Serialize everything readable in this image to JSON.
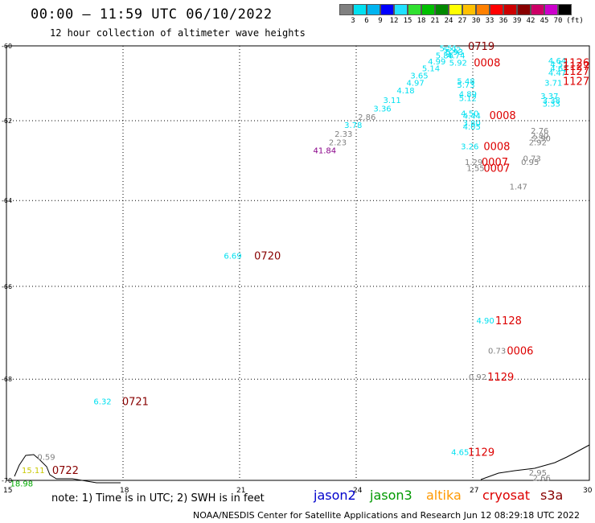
{
  "header": {
    "title": "00:00 – 11:59 UTC 06/10/2022",
    "subtitle": "12 hour collection of altimeter wave heights"
  },
  "scale": {
    "colors": [
      "#808080",
      "#00e0f0",
      "#00b4f0",
      "#0000ff",
      "#00c0ff",
      "#30e030",
      "#00c000",
      "#008800",
      "#ffff00",
      "#ffc000",
      "#ff8000",
      "#ff0000",
      "#cc0000",
      "#880000",
      "#aa0000",
      "#cc00cc",
      "#ee88ee",
      "#000000"
    ],
    "labels": [
      "3",
      "6",
      "9",
      "12",
      "15",
      "18",
      "21",
      "24",
      "27",
      "30",
      "33",
      "36",
      "39",
      "42",
      "45",
      "70",
      "(ft)"
    ],
    "colors_used": [
      "#808080",
      "#00e0f0",
      "#00b4f0",
      "#0000ff",
      "#20e0ff",
      "#30e030",
      "#00c000",
      "#008800",
      "#ffff00",
      "#ffc000",
      "#ff8000",
      "#ff0000",
      "#cc0000",
      "#880000",
      "#cc0066",
      "#cc00cc",
      "#000000"
    ]
  },
  "axes": {
    "lat_labels": [
      "-60",
      "-62",
      "-64",
      "-66",
      "-68",
      "-70"
    ],
    "lon_labels": [
      "15",
      "18",
      "21",
      "24",
      "27",
      "30"
    ]
  },
  "wave_heights": [
    {
      "text": "5.51",
      "lon": 26.35,
      "lat": -60.05,
      "c": "#00e0f0"
    },
    {
      "text": "5.92",
      "lon": 26.45,
      "lat": -60.1,
      "c": "#00e0f0"
    },
    {
      "text": "5.93",
      "lon": 26.5,
      "lat": -60.15,
      "c": "#00e0f0"
    },
    {
      "text": "5.86",
      "lon": 26.25,
      "lat": -60.25,
      "c": "#00e0f0"
    },
    {
      "text": "4.74",
      "lon": 26.55,
      "lat": -60.25,
      "c": "#00e0f0"
    },
    {
      "text": "4.99",
      "lon": 26.05,
      "lat": -60.42,
      "c": "#00e0f0"
    },
    {
      "text": "5.92",
      "lon": 26.6,
      "lat": -60.45,
      "c": "#00e0f0"
    },
    {
      "text": "5.14",
      "lon": 25.9,
      "lat": -60.6,
      "c": "#00e0f0"
    },
    {
      "text": "3.65",
      "lon": 25.6,
      "lat": -60.8,
      "c": "#00e0f0"
    },
    {
      "text": "4.97",
      "lon": 25.5,
      "lat": -61.0,
      "c": "#00e0f0"
    },
    {
      "text": "5.48",
      "lon": 26.8,
      "lat": -60.95,
      "c": "#00e0f0"
    },
    {
      "text": "5.73",
      "lon": 26.8,
      "lat": -61.05,
      "c": "#00e0f0"
    },
    {
      "text": "4.18",
      "lon": 25.25,
      "lat": -61.2,
      "c": "#00e0f0"
    },
    {
      "text": "4.89",
      "lon": 26.85,
      "lat": -61.3,
      "c": "#00e0f0"
    },
    {
      "text": "5.12",
      "lon": 26.85,
      "lat": -61.4,
      "c": "#00e0f0"
    },
    {
      "text": "3.11",
      "lon": 24.9,
      "lat": -61.45,
      "c": "#00e0f0"
    },
    {
      "text": "3.36",
      "lon": 24.65,
      "lat": -61.68,
      "c": "#00e0f0"
    },
    {
      "text": "4.50",
      "lon": 26.9,
      "lat": -61.8,
      "c": "#00e0f0"
    },
    {
      "text": "4.44",
      "lon": 26.95,
      "lat": -61.87,
      "c": "#00e0f0"
    },
    {
      "text": "2.86",
      "lon": 24.25,
      "lat": -61.9,
      "c": "#808080"
    },
    {
      "text": "3.80",
      "lon": 26.95,
      "lat": -62.05,
      "c": "#00e0f0"
    },
    {
      "text": "3.78",
      "lon": 23.9,
      "lat": -62.1,
      "c": "#00e0f0"
    },
    {
      "text": "4.05",
      "lon": 26.95,
      "lat": -62.15,
      "c": "#00e0f0"
    },
    {
      "text": "2.33",
      "lon": 23.65,
      "lat": -62.33,
      "c": "#808080"
    },
    {
      "text": "2.23",
      "lon": 23.5,
      "lat": -62.55,
      "c": "#808080"
    },
    {
      "text": "3.26",
      "lon": 26.9,
      "lat": -62.65,
      "c": "#00e0f0"
    },
    {
      "text": "41.84",
      "lon": 23.1,
      "lat": -62.75,
      "c": "#880088"
    },
    {
      "text": "1.29",
      "lon": 27.0,
      "lat": -63.05,
      "c": "#808080"
    },
    {
      "text": "1.55",
      "lon": 27.05,
      "lat": -63.2,
      "c": "#808080"
    },
    {
      "text": "0.73",
      "lon": 28.5,
      "lat": -62.95,
      "c": "#808080"
    },
    {
      "text": "0.95",
      "lon": 28.45,
      "lat": -63.05,
      "c": "#808080"
    },
    {
      "text": "1.47",
      "lon": 28.15,
      "lat": -63.65,
      "c": "#808080"
    },
    {
      "text": "4.64",
      "lon": 29.15,
      "lat": -60.4,
      "c": "#00e0f0"
    },
    {
      "text": "4.57",
      "lon": 29.2,
      "lat": -60.5,
      "c": "#00e0f0"
    },
    {
      "text": "4.62",
      "lon": 29.2,
      "lat": -60.6,
      "c": "#00e0f0"
    },
    {
      "text": "4.47",
      "lon": 29.15,
      "lat": -60.72,
      "c": "#00e0f0"
    },
    {
      "text": "3.71",
      "lon": 29.05,
      "lat": -61.0,
      "c": "#00e0f0"
    },
    {
      "text": "3.37",
      "lon": 28.95,
      "lat": -61.35,
      "c": "#00e0f0"
    },
    {
      "text": "3.38",
      "lon": 29.0,
      "lat": -61.45,
      "c": "#00e0f0"
    },
    {
      "text": "3.33",
      "lon": 29.0,
      "lat": -61.55,
      "c": "#00e0f0"
    },
    {
      "text": "2.76",
      "lon": 28.7,
      "lat": -62.25,
      "c": "#808080"
    },
    {
      "text": "2.80",
      "lon": 28.7,
      "lat": -62.37,
      "c": "#808080"
    },
    {
      "text": "2.90",
      "lon": 28.75,
      "lat": -62.45,
      "c": "#808080"
    },
    {
      "text": "2.92",
      "lon": 28.65,
      "lat": -62.55,
      "c": "#808080"
    },
    {
      "text": "6.69",
      "lon": 20.8,
      "lat": -65.3,
      "c": "#00e0f0"
    },
    {
      "text": "4.90",
      "lon": 27.3,
      "lat": -66.75,
      "c": "#00e0f0"
    },
    {
      "text": "0.73",
      "lon": 27.6,
      "lat": -67.4,
      "c": "#808080"
    },
    {
      "text": "0.92",
      "lon": 27.1,
      "lat": -67.95,
      "c": "#808080"
    },
    {
      "text": "6.32",
      "lon": 17.45,
      "lat": -68.45,
      "c": "#00e0f0"
    },
    {
      "text": "4.65",
      "lon": 26.65,
      "lat": -69.45,
      "c": "#00e0f0"
    },
    {
      "text": "0.59",
      "lon": 16.0,
      "lat": -69.55,
      "c": "#808080"
    },
    {
      "text": "15.11",
      "lon": 15.6,
      "lat": -69.8,
      "c": "#c8c800"
    },
    {
      "text": "18.98",
      "lon": 15.3,
      "lat": -70.05,
      "c": "#00aa00"
    },
    {
      "text": "2.95",
      "lon": 28.65,
      "lat": -69.85,
      "c": "#808080"
    },
    {
      "text": "2.66",
      "lon": 28.75,
      "lat": -69.95,
      "c": "#808080"
    }
  ],
  "time_labels": [
    {
      "text": "0719",
      "lon": 27.0,
      "lat": -60.0,
      "c": "#880000"
    },
    {
      "text": "0008",
      "lon": 27.15,
      "lat": -60.45,
      "c": "#dd0000"
    },
    {
      "text": "0008",
      "lon": 27.55,
      "lat": -61.85,
      "c": "#dd0000"
    },
    {
      "text": "0008",
      "lon": 27.4,
      "lat": -62.65,
      "c": "#dd0000"
    },
    {
      "text": "0007",
      "lon": 27.35,
      "lat": -63.05,
      "c": "#dd0000"
    },
    {
      "text": "0007",
      "lon": 27.4,
      "lat": -63.2,
      "c": "#dd0000"
    },
    {
      "text": "1126",
      "lon": 29.95,
      "lat": -60.45,
      "c": "#dd0000"
    },
    {
      "text": "1127",
      "lon": 29.95,
      "lat": -60.55,
      "c": "#dd0000"
    },
    {
      "text": "1127",
      "lon": 29.95,
      "lat": -60.68,
      "c": "#dd0000"
    },
    {
      "text": "1127",
      "lon": 29.75,
      "lat": -60.95,
      "c": "#dd0000"
    },
    {
      "text": "0720",
      "lon": 21.5,
      "lat": -65.3,
      "c": "#880000"
    },
    {
      "text": "1128",
      "lon": 27.7,
      "lat": -66.75,
      "c": "#dd0000"
    },
    {
      "text": "0006",
      "lon": 28.0,
      "lat": -67.4,
      "c": "#dd0000"
    },
    {
      "text": "1129",
      "lon": 27.5,
      "lat": -67.95,
      "c": "#dd0000"
    },
    {
      "text": "0721",
      "lon": 18.1,
      "lat": -68.45,
      "c": "#880000"
    },
    {
      "text": "1129",
      "lon": 27.0,
      "lat": -69.45,
      "c": "#dd0000"
    },
    {
      "text": "0722",
      "lon": 16.3,
      "lat": -69.8,
      "c": "#880000"
    }
  ],
  "footer": {
    "note": "note: 1) Time is in UTC; 2) SWH is in feet",
    "satellites": [
      {
        "name": "jason2",
        "color": "#0000cc"
      },
      {
        "name": "jason3",
        "color": "#009900"
      },
      {
        "name": "altika",
        "color": "#ff9900"
      },
      {
        "name": "cryosat",
        "color": "#dd0000"
      },
      {
        "name": "s3a",
        "color": "#880000"
      }
    ],
    "credit": "NOAA/NESDIS Center for Satellite Applications and Research    Jun 12 08:29:18 UTC 2022"
  }
}
